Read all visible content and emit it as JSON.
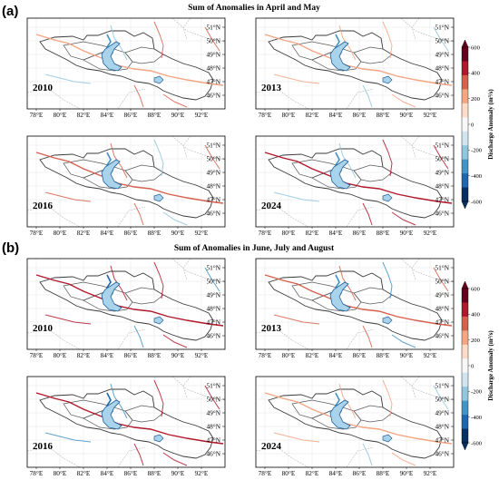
{
  "sections": [
    {
      "label": "(a)",
      "title": "Sum of Anomalies in April and May",
      "panels": [
        {
          "year": "2010",
          "red_intensity": 0.45,
          "blue_intensity": 0.55
        },
        {
          "year": "2013",
          "red_intensity": 0.3,
          "blue_intensity": 0.45
        },
        {
          "year": "2016",
          "red_intensity": 0.5,
          "blue_intensity": 0.5
        },
        {
          "year": "2024",
          "red_intensity": 0.7,
          "blue_intensity": 0.45
        }
      ]
    },
    {
      "label": "(b)",
      "title": "Sum of Anomalies in June, July and August",
      "panels": [
        {
          "year": "2010",
          "red_intensity": 0.8,
          "blue_intensity": 0.8
        },
        {
          "year": "2013",
          "red_intensity": 0.55,
          "blue_intensity": 0.7
        },
        {
          "year": "2016",
          "red_intensity": 0.75,
          "blue_intensity": 0.85
        },
        {
          "year": "2024",
          "red_intensity": 0.25,
          "blue_intensity": 0.4
        }
      ]
    }
  ],
  "axes": {
    "lat_ticks": [
      "51°N",
      "50°N",
      "49°N",
      "48°N",
      "47°N",
      "46°N"
    ],
    "lon_ticks": [
      "78°E",
      "80°E",
      "82°E",
      "84°E",
      "86°E",
      "88°E",
      "90°E",
      "92°E"
    ]
  },
  "colorbar": {
    "label": "Discharge Anomaly (m³/s)",
    "ticks": [
      "600",
      "400",
      "200",
      "0",
      "-200",
      "-400",
      "-600"
    ],
    "min": -600,
    "max": 600,
    "colors": [
      "#053061",
      "#2166ac",
      "#4393c3",
      "#92c5de",
      "#d1e5f0",
      "#f7f7f7",
      "#fddbc7",
      "#f4a582",
      "#d6604d",
      "#b2182b",
      "#67001f"
    ]
  }
}
